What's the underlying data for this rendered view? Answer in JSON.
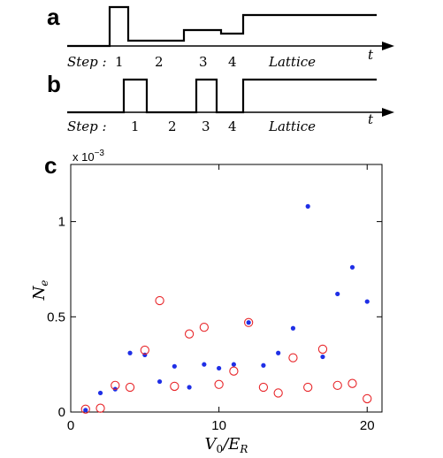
{
  "panels": {
    "a": {
      "label": "a",
      "step_word": "Step :",
      "steps": [
        "1",
        "2",
        "3",
        "4"
      ],
      "lattice": "Lattice",
      "time_symbol": "t"
    },
    "b": {
      "label": "b",
      "step_word": "Step :",
      "steps": [
        "1",
        "2",
        "3",
        "4"
      ],
      "lattice": "Lattice",
      "time_symbol": "t"
    },
    "c": {
      "label": "c"
    }
  },
  "chart_data": {
    "type": "scatter",
    "title": "",
    "xlabel": "V0/ER",
    "ylabel": "Ne",
    "y_multiplier": "x 10",
    "y_exponent": "−3",
    "xlim": [
      0,
      21
    ],
    "ylim": [
      0,
      1.3
    ],
    "x_ticks": [
      0,
      10,
      20
    ],
    "y_ticks": [
      0,
      0.5,
      1
    ],
    "x_tick_labels": [
      "0",
      "10",
      "20"
    ],
    "y_tick_labels": [
      "0",
      "0.5",
      "1"
    ],
    "grid": false,
    "series": [
      {
        "marker": "filled-dot",
        "color": "#1f2fe6",
        "points": [
          [
            1,
            0.01
          ],
          [
            2,
            0.1
          ],
          [
            3,
            0.12
          ],
          [
            4,
            0.31
          ],
          [
            5,
            0.3
          ],
          [
            6,
            0.16
          ],
          [
            7,
            0.24
          ],
          [
            8,
            0.13
          ],
          [
            9,
            0.25
          ],
          [
            10,
            0.23
          ],
          [
            11,
            0.25
          ],
          [
            12,
            0.47
          ],
          [
            13,
            0.245
          ],
          [
            14,
            0.31
          ],
          [
            15,
            0.44
          ],
          [
            16,
            1.08
          ],
          [
            17,
            0.29
          ],
          [
            18,
            0.62
          ],
          [
            19,
            0.76
          ],
          [
            20,
            0.58
          ]
        ]
      },
      {
        "marker": "open-circle",
        "color": "#e8262a",
        "points": [
          [
            1,
            0.015
          ],
          [
            2,
            0.02
          ],
          [
            3,
            0.14
          ],
          [
            4,
            0.13
          ],
          [
            5,
            0.325
          ],
          [
            6,
            0.585
          ],
          [
            7,
            0.135
          ],
          [
            8,
            0.41
          ],
          [
            9,
            0.445
          ],
          [
            10,
            0.145
          ],
          [
            11,
            0.215
          ],
          [
            12,
            0.47
          ],
          [
            13,
            0.13
          ],
          [
            14,
            0.1
          ],
          [
            15,
            0.285
          ],
          [
            16,
            0.13
          ],
          [
            17,
            0.33
          ],
          [
            18,
            0.14
          ],
          [
            19,
            0.15
          ],
          [
            20,
            0.07
          ]
        ]
      }
    ]
  }
}
